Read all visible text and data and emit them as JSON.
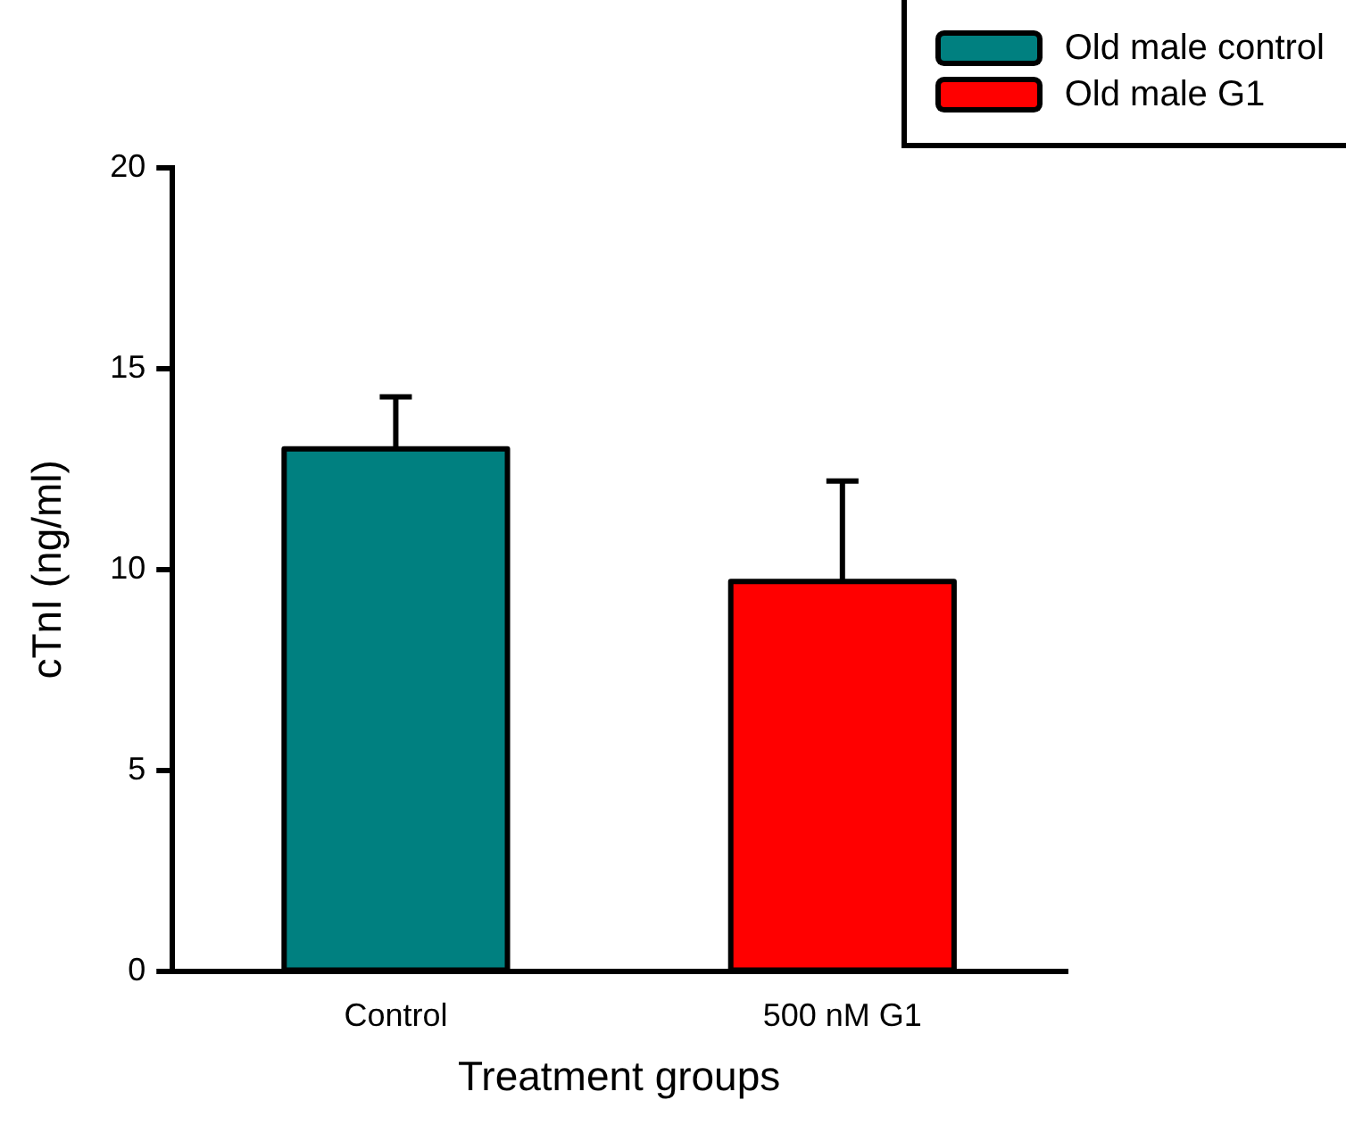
{
  "chart_data": {
    "type": "bar",
    "xlabel": "Treatment groups",
    "ylabel": "cTnI (ng/ml)",
    "categories": [
      "Control",
      "500 nM G1"
    ],
    "series": [
      {
        "name": "Old male control",
        "color": "#008080",
        "values": [
          13.0,
          null
        ],
        "errors": [
          [
            13.0,
            14.3
          ],
          null
        ]
      },
      {
        "name": "Old male G1",
        "color": "#ff0000",
        "values": [
          null,
          9.7
        ],
        "errors": [
          null,
          [
            9.7,
            12.2
          ]
        ]
      }
    ],
    "ylim": [
      0,
      20
    ],
    "yticks": [
      0,
      5,
      10,
      15,
      20
    ],
    "grid": false,
    "legend": "top right"
  }
}
